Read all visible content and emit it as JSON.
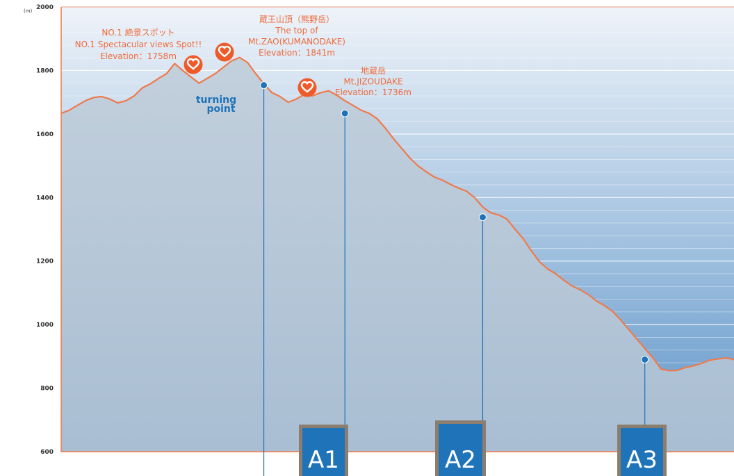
{
  "chart_data": {
    "type": "area",
    "ylabel": "(m)",
    "ylim": [
      600,
      2000
    ],
    "yticks": [
      600,
      800,
      1000,
      1200,
      1400,
      1600,
      1800,
      2000
    ],
    "grid": true,
    "profile": [
      1665,
      1675,
      1690,
      1705,
      1715,
      1718,
      1710,
      1698,
      1705,
      1720,
      1745,
      1758,
      1775,
      1790,
      1822,
      1800,
      1780,
      1760,
      1775,
      1790,
      1810,
      1830,
      1841,
      1825,
      1790,
      1758,
      1730,
      1718,
      1700,
      1710,
      1725,
      1720,
      1730,
      1736,
      1722,
      1705,
      1690,
      1675,
      1665,
      1648,
      1618,
      1585,
      1555,
      1525,
      1500,
      1482,
      1465,
      1455,
      1442,
      1430,
      1420,
      1400,
      1370,
      1352,
      1345,
      1332,
      1300,
      1270,
      1232,
      1198,
      1175,
      1160,
      1140,
      1122,
      1110,
      1095,
      1075,
      1060,
      1042,
      1015,
      985,
      955,
      925,
      895,
      860,
      855,
      856,
      865,
      870,
      878,
      888,
      892,
      895,
      890
    ],
    "annotations": [
      {
        "lines": [
          "NO.1 絶景スポット",
          "NO.1 Spectacular views Spot!!",
          "Elevation：1758m"
        ],
        "index": 25,
        "elevation": 1758
      },
      {
        "lines": [
          "蔵王山頂（熊野岳）",
          "The top of",
          "Mt.ZAO(KUMANODAKE)",
          "Elevation：1841m"
        ],
        "index": 22,
        "elevation": 1841
      },
      {
        "lines": [
          "地蔵岳",
          "Mt.JIZOUDAKE",
          "Elevation：1736m"
        ],
        "index": 33,
        "elevation": 1736
      }
    ],
    "turning_point": {
      "lines": [
        "turning",
        "point"
      ],
      "index": 25,
      "elevation": 1758
    },
    "markers": [
      {
        "label": "A1",
        "index": 35,
        "elevation": 1665
      },
      {
        "label": "A2",
        "index": 52,
        "elevation": 1338
      },
      {
        "label": "A3",
        "index": 72,
        "elevation": 890
      }
    ],
    "colors": {
      "line": "#ee7a4c",
      "area": "#b4c6d6",
      "sky_top": "#eef3f9",
      "sky_bottom": "#5e95c9",
      "pin": "#1e73b9",
      "heart": "#ee5a2a",
      "marker_bg": "#1e73b9",
      "marker_border": "#8c7e6e"
    }
  }
}
